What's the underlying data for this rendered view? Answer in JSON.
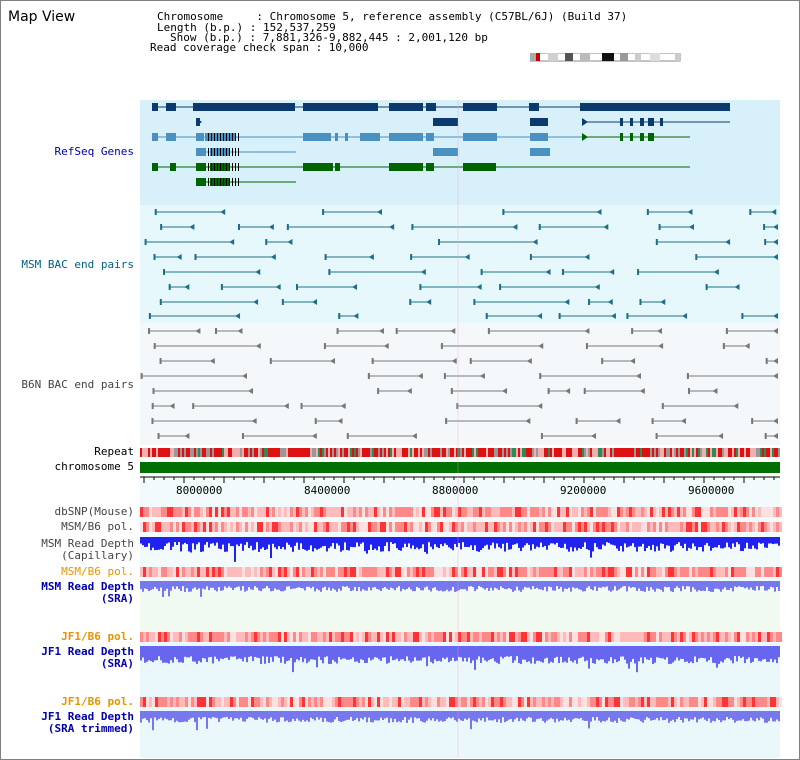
{
  "window": {
    "title": "Map View"
  },
  "header": {
    "lines": [
      "Chromosome     : Chromosome 5, reference assembly (C57BL/6J) (Build 37)",
      "Length (b.p.) : 152,537,259",
      "Show (b.p.) : 7,881,326-9,882,445 : 2,001,120 bp",
      "Read coverage check span : 10,000"
    ]
  },
  "tracks": {
    "refseq": "RefSeq Genes",
    "msm_bac": "MSM BAC end pairs",
    "b6n_bac": "B6N BAC end pairs",
    "repeat": "Repeat",
    "chromosome": "chromosome 5",
    "dbsnp": "dbSNP(Mouse)",
    "msm_pol1": "MSM/B6 pol.",
    "msm_depth_cap_1": "MSM Read Depth",
    "msm_depth_cap_2": "(Capillary)",
    "msm_pol2": "MSM/B6 pol.",
    "msm_depth_sra_1": "MSM Read Depth",
    "msm_depth_sra_2": "(SRA)",
    "jf1_pol1": "JF1/B6 pol.",
    "jf1_depth_sra_1": "JF1 Read Depth",
    "jf1_depth_sra_2": "(SRA)",
    "jf1_pol2": "JF1/B6 pol.",
    "jf1_depth_trim_1": "JF1 Read Depth",
    "jf1_depth_trim_2": "(SRA trimmed)"
  },
  "axis": {
    "ticks": [
      "8000000",
      "8400000",
      "8800000",
      "9200000",
      "9600000"
    ]
  },
  "colors": {
    "gene_dark": "#0b3a6e",
    "gene_mid": "#4a90c0",
    "gene_green": "#006400",
    "refseq_bg": "#d8f0fa",
    "bac_bg": "#e6f8fb",
    "b6n_bg": "#f4f8fb",
    "label_blue": "#0000aa",
    "label_orange": "#e69500",
    "label_teal": "#006080"
  }
}
